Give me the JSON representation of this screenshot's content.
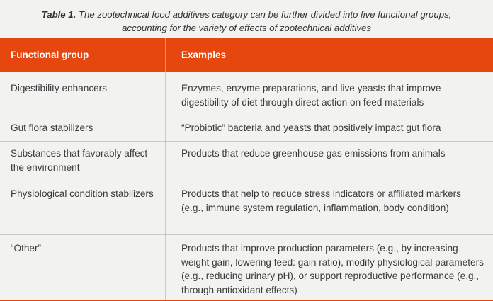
{
  "caption": {
    "label": "Table 1.",
    "text": "The zootechnical food additives category can be further divided into five functional groups,",
    "text2": "accounting for the variety of effects of zootechnical additives"
  },
  "table": {
    "headers": [
      "Functional group",
      "Examples"
    ],
    "rows": [
      {
        "group": "Digestibility enhancers",
        "examples": "Enzymes, enzyme preparations, and live yeasts that improve digestibility of diet through direct action on feed materials"
      },
      {
        "group": "Gut flora stabilizers",
        "examples": "“Probiotic” bacteria and yeasts that positively impact gut flora"
      },
      {
        "group": "Substances that favorably affect the environment",
        "examples": "Products that reduce greenhouse gas emissions from animals"
      },
      {
        "group": "Physiological condition stabilizers",
        "examples": "Products that help to reduce stress indicators or affiliated markers (e.g., immune system regulation, inflammation, body condition)"
      },
      {
        "group": "“Other”",
        "examples": "Products that improve production parameters (e.g., by increasing weight gain, lowering feed: gain ratio), modify physiological parameters (e.g., reducing urinary pH), or support reproductive performance (e.g., through antioxidant effects)"
      }
    ]
  },
  "colors": {
    "header_bg": "#e5470f",
    "header_text": "#ffffff",
    "page_bg": "#f2f2f1"
  }
}
